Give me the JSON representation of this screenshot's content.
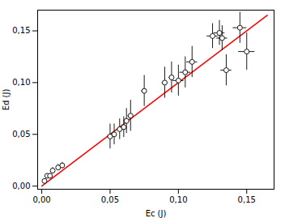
{
  "chart_data": {
    "type": "scatter",
    "xlabel": "Ec (J)",
    "ylabel": "Ed (J)",
    "xlim": [
      -0.003,
      0.17
    ],
    "ylim": [
      -0.003,
      0.17
    ],
    "xticks": [
      {
        "value": 0.0,
        "label": "0,00"
      },
      {
        "value": 0.05,
        "label": "0,05"
      },
      {
        "value": 0.1,
        "label": "0,10"
      },
      {
        "value": 0.15,
        "label": "0,15"
      }
    ],
    "yticks": [
      {
        "value": 0.0,
        "label": "0,00"
      },
      {
        "value": 0.05,
        "label": "0,05"
      },
      {
        "value": 0.1,
        "label": "0,10"
      },
      {
        "value": 0.15,
        "label": "0,15"
      }
    ],
    "grid": false,
    "series": [
      {
        "type": "line",
        "color": "#ff0000",
        "line_style": "solid",
        "x": [
          0.0,
          0.165
        ],
        "y": [
          0.0,
          0.165
        ]
      },
      {
        "type": "scatter",
        "color": "black",
        "marker": "open_circle",
        "x": [
          0.002,
          0.004,
          0.006,
          0.008,
          0.012,
          0.015,
          0.05,
          0.053,
          0.057,
          0.06,
          0.062,
          0.065,
          0.075,
          0.09,
          0.095,
          0.1,
          0.105,
          0.11,
          0.125,
          0.13,
          0.132,
          0.135,
          0.145,
          0.15
        ],
        "y": [
          0.005,
          0.01,
          0.01,
          0.015,
          0.018,
          0.02,
          0.048,
          0.05,
          0.055,
          0.057,
          0.063,
          0.068,
          0.092,
          0.1,
          0.105,
          0.102,
          0.11,
          0.12,
          0.145,
          0.148,
          0.143,
          0.112,
          0.153,
          0.13
        ],
        "xerr": [
          0.0005,
          0.0005,
          0.0005,
          0.0005,
          0.0005,
          0.0005,
          0.002,
          0.002,
          0.002,
          0.002,
          0.002,
          0.002,
          0.002,
          0.002,
          0.002,
          0.004,
          0.004,
          0.004,
          0.004,
          0.004,
          0.004,
          0.004,
          0.005,
          0.006
        ],
        "yerr": [
          0.002,
          0.002,
          0.002,
          0.003,
          0.003,
          0.003,
          0.012,
          0.01,
          0.01,
          0.01,
          0.012,
          0.015,
          0.015,
          0.015,
          0.015,
          0.015,
          0.015,
          0.015,
          0.012,
          0.012,
          0.012,
          0.015,
          0.015,
          0.018
        ]
      }
    ]
  }
}
